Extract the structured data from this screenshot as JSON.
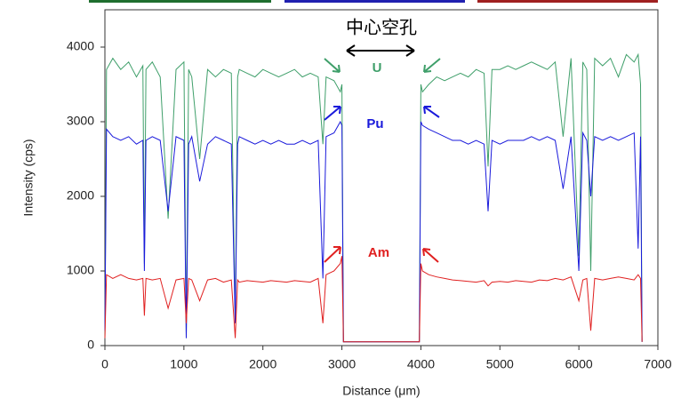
{
  "chart_data": {
    "type": "line",
    "xlabel": "Distance (μm)",
    "ylabel": "Intensity (cps)",
    "xlim": [
      0,
      7000
    ],
    "xticks": [
      0,
      1000,
      2000,
      3000,
      4000,
      5000,
      6000,
      7000
    ],
    "ylim": [
      0,
      4500
    ],
    "yticks": [
      0,
      1000,
      2000,
      3000,
      4000
    ],
    "grid": false,
    "x": [
      0,
      20,
      100,
      200,
      300,
      400,
      480,
      500,
      520,
      600,
      700,
      800,
      900,
      1000,
      1030,
      1060,
      1100,
      1200,
      1300,
      1400,
      1500,
      1600,
      1650,
      1680,
      1700,
      1800,
      1900,
      2000,
      2100,
      2200,
      2300,
      2400,
      2500,
      2600,
      2700,
      2760,
      2800,
      2900,
      2980,
      3000,
      3020,
      3500,
      3980,
      4000,
      4020,
      4100,
      4200,
      4300,
      4400,
      4500,
      4600,
      4700,
      4800,
      4850,
      4900,
      5000,
      5100,
      5200,
      5300,
      5400,
      5500,
      5600,
      5700,
      5800,
      5900,
      6000,
      6050,
      6100,
      6150,
      6200,
      6300,
      6400,
      6500,
      6600,
      6700,
      6750,
      6780,
      6800
    ],
    "series": [
      {
        "name": "U",
        "color": "#3f9f6a",
        "values": [
          100,
          3700,
          3850,
          3700,
          3800,
          3600,
          3750,
          1100,
          3700,
          3800,
          3600,
          1700,
          3700,
          3800,
          100,
          3700,
          3600,
          2500,
          3700,
          3600,
          3700,
          3650,
          300,
          3600,
          3700,
          3650,
          3600,
          3700,
          3650,
          3600,
          3650,
          3700,
          3600,
          3650,
          3600,
          2700,
          3600,
          3550,
          3400,
          3500,
          50,
          50,
          50,
          3500,
          3400,
          3500,
          3600,
          3550,
          3600,
          3650,
          3600,
          3700,
          3650,
          2400,
          3700,
          3700,
          3750,
          3700,
          3750,
          3800,
          3750,
          3700,
          3800,
          2800,
          3850,
          1200,
          3800,
          3700,
          1000,
          3850,
          3750,
          3850,
          3600,
          3900,
          3800,
          3900,
          3500,
          50
        ]
      },
      {
        "name": "Pu",
        "color": "#1a1adb",
        "values": [
          200,
          2900,
          2800,
          2750,
          2800,
          2700,
          2750,
          1000,
          2750,
          2800,
          2750,
          1800,
          2800,
          2750,
          100,
          2700,
          2800,
          2200,
          2700,
          2800,
          2750,
          2700,
          300,
          2700,
          2800,
          2750,
          2700,
          2750,
          2700,
          2750,
          2700,
          2700,
          2750,
          2700,
          2750,
          900,
          2800,
          2850,
          3000,
          2950,
          50,
          50,
          50,
          3000,
          2950,
          2900,
          2850,
          2800,
          2750,
          2750,
          2700,
          2750,
          2700,
          1800,
          2750,
          2700,
          2750,
          2750,
          2750,
          2800,
          2750,
          2800,
          2750,
          2100,
          2800,
          1000,
          2850,
          2750,
          2000,
          2800,
          2750,
          2800,
          2750,
          2800,
          2850,
          1300,
          2800,
          50
        ]
      },
      {
        "name": "Am",
        "color": "#e02020",
        "values": [
          100,
          950,
          900,
          950,
          900,
          880,
          900,
          400,
          900,
          880,
          900,
          500,
          880,
          900,
          300,
          900,
          880,
          600,
          880,
          900,
          850,
          880,
          100,
          880,
          850,
          870,
          860,
          850,
          870,
          860,
          850,
          870,
          860,
          850,
          900,
          300,
          950,
          1000,
          1100,
          1200,
          50,
          50,
          50,
          1100,
          1000,
          950,
          920,
          900,
          880,
          870,
          860,
          850,
          870,
          800,
          850,
          860,
          850,
          870,
          860,
          850,
          880,
          870,
          900,
          880,
          920,
          600,
          880,
          900,
          200,
          900,
          880,
          900,
          920,
          900,
          880,
          950,
          900,
          50
        ]
      }
    ],
    "annotations": [
      {
        "text": "中心空孔"
      },
      {
        "text": "U",
        "color": "#3f9f6a"
      },
      {
        "text": "Pu",
        "color": "#1a1adb"
      },
      {
        "text": "Am",
        "color": "#e02020"
      }
    ]
  }
}
